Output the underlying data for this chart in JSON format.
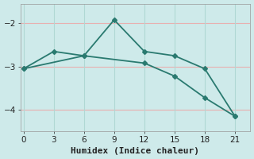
{
  "bg_color": "#ceeaea",
  "line_color": "#2a7a70",
  "grid_color_h": "#e8b0b0",
  "grid_color_v": "#b0d8d4",
  "line1_x": [
    0,
    3,
    6,
    9,
    12,
    15,
    18,
    21
  ],
  "line1_y": [
    -3.05,
    -2.65,
    -2.75,
    -1.92,
    -2.65,
    -2.75,
    -3.05,
    -4.15
  ],
  "line2_x": [
    0,
    6,
    12,
    15,
    18,
    21
  ],
  "line2_y": [
    -3.05,
    -2.75,
    -2.92,
    -3.22,
    -3.72,
    -4.15
  ],
  "xlabel": "Humidex (Indice chaleur)",
  "xlabel_fontsize": 8,
  "xticks": [
    0,
    3,
    6,
    9,
    12,
    15,
    18,
    21
  ],
  "yticks": [
    -4,
    -3,
    -2
  ],
  "xlim": [
    -0.3,
    22.5
  ],
  "ylim": [
    -4.5,
    -1.55
  ],
  "tick_fontsize": 7.5
}
